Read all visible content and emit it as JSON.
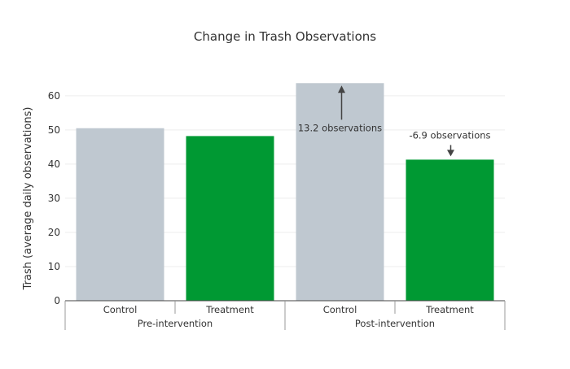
{
  "chart_data": {
    "type": "bar",
    "title": "Change in Trash Observations",
    "xlabel": "",
    "ylabel": "Trash (average daily observations)",
    "ylim": [
      0,
      64
    ],
    "yticks": [
      0,
      10,
      20,
      30,
      40,
      50,
      60
    ],
    "grid": true,
    "groups": [
      {
        "label": "Pre-intervention",
        "bars": [
          {
            "category": "Control",
            "value": 50.5,
            "color": "#bfc8d0"
          },
          {
            "category": "Treatment",
            "value": 48.2,
            "color": "#009933"
          }
        ]
      },
      {
        "label": "Post-intervention",
        "bars": [
          {
            "category": "Control",
            "value": 63.7,
            "color": "#bfc8d0"
          },
          {
            "category": "Treatment",
            "value": 41.3,
            "color": "#009933"
          }
        ]
      }
    ],
    "annotations": [
      {
        "text": "13.2 observations",
        "group": 1,
        "bar": 0,
        "direction": "up"
      },
      {
        "text": "-6.9 observations",
        "group": 1,
        "bar": 1,
        "direction": "down"
      }
    ]
  }
}
